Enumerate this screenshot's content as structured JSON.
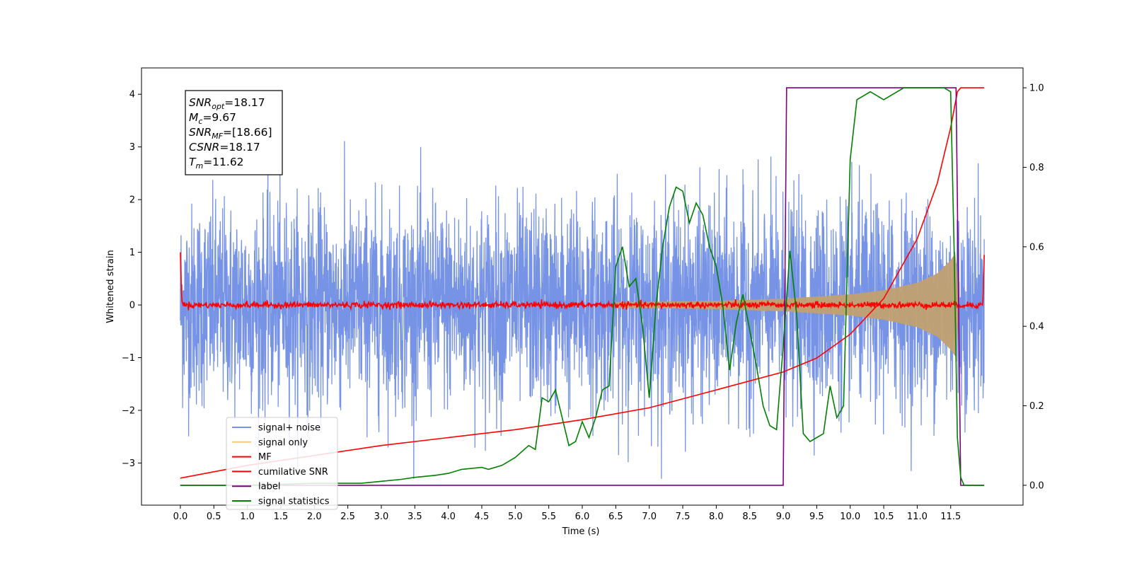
{
  "chart_data": {
    "type": "line",
    "title": "",
    "xlabel": "Time (s)",
    "ylabel": "Whitened strain",
    "xlim": [
      -0.58,
      12.58
    ],
    "ylim": [
      -3.8,
      4.5
    ],
    "y2lim": [
      -0.05,
      1.05
    ],
    "x_ticks": [
      "0.0",
      "0.5",
      "1.0",
      "1.5",
      "2.0",
      "2.5",
      "3.0",
      "3.5",
      "4.0",
      "4.5",
      "5.0",
      "5.5",
      "6.0",
      "6.5",
      "7.0",
      "7.5",
      "8.0",
      "8.5",
      "9.0",
      "9.5",
      "10.0",
      "10.5",
      "11.0",
      "11.5"
    ],
    "y_ticks": [
      "−3",
      "−2",
      "−1",
      "0",
      "1",
      "2",
      "3",
      "4"
    ],
    "y2_ticks": [
      "0.0",
      "0.2",
      "0.4",
      "0.6",
      "0.8",
      "1.0"
    ],
    "grid": false,
    "legend_position": "lower-left",
    "annotation": {
      "lines": [
        {
          "sym": "SNR",
          "sub": "opt",
          "value": "=18.17"
        },
        {
          "sym": "M",
          "sub": "c",
          "value": "=9.67"
        },
        {
          "sym": "SNR",
          "sub": "MF",
          "value": "=[18.66]"
        },
        {
          "sym": "CSNR",
          "sub": "",
          "value": "=18.17"
        },
        {
          "sym": "T",
          "sub": "m",
          "value": "=11.62"
        }
      ]
    },
    "series": [
      {
        "name": "signal+ noise",
        "axis": "left",
        "color": "#7793e6",
        "kind": "noise",
        "amplitude_range": [
          -3.3,
          3.4
        ]
      },
      {
        "name": "signal only",
        "axis": "left",
        "color": "#f5c97a",
        "kind": "chirp",
        "envelope": {
          "x": [
            0.0,
            7.0,
            8.0,
            9.0,
            10.0,
            10.5,
            11.0,
            11.3,
            11.5,
            11.58,
            11.62
          ],
          "y": [
            0.03,
            0.06,
            0.08,
            0.12,
            0.2,
            0.28,
            0.42,
            0.6,
            0.85,
            1.0,
            0.0
          ]
        }
      },
      {
        "name": "MF",
        "axis": "left",
        "color": "#ff0000",
        "kind": "mf",
        "points": {
          "x": [
            0.0,
            0.02,
            0.04,
            11.98,
            12.0
          ],
          "y": [
            1.0,
            0.1,
            0.0,
            0.0,
            0.95
          ]
        }
      },
      {
        "name": "cumilative SNR",
        "axis": "right",
        "color": "#ff0000",
        "x": [
          0.0,
          1.0,
          2.0,
          3.0,
          4.0,
          5.0,
          6.0,
          7.0,
          8.0,
          9.0,
          9.5,
          10.0,
          10.5,
          11.0,
          11.3,
          11.5,
          11.6,
          11.65,
          12.0
        ],
        "y": [
          0.018,
          0.05,
          0.075,
          0.1,
          0.12,
          0.14,
          0.165,
          0.195,
          0.24,
          0.285,
          0.32,
          0.38,
          0.47,
          0.62,
          0.76,
          0.9,
          0.99,
          1.0,
          1.0
        ]
      },
      {
        "name": "label",
        "axis": "right",
        "color": "#800080",
        "x": [
          0.0,
          9.0,
          9.05,
          11.58,
          11.65,
          12.0
        ],
        "y": [
          0.0,
          0.0,
          1.0,
          1.0,
          0.0,
          0.0
        ]
      },
      {
        "name": "signal statistics",
        "axis": "right",
        "color": "#008000",
        "x": [
          0.0,
          1.0,
          2.0,
          2.7,
          3.0,
          3.3,
          3.5,
          3.8,
          4.0,
          4.2,
          4.5,
          4.6,
          4.8,
          5.0,
          5.2,
          5.3,
          5.4,
          5.5,
          5.6,
          5.7,
          5.8,
          5.9,
          6.0,
          6.1,
          6.2,
          6.3,
          6.4,
          6.5,
          6.6,
          6.7,
          6.8,
          6.9,
          7.0,
          7.1,
          7.2,
          7.3,
          7.4,
          7.5,
          7.6,
          7.7,
          7.8,
          7.9,
          8.0,
          8.1,
          8.2,
          8.3,
          8.4,
          8.5,
          8.6,
          8.7,
          8.8,
          8.9,
          9.0,
          9.1,
          9.2,
          9.3,
          9.4,
          9.5,
          9.6,
          9.7,
          9.8,
          9.9,
          10.0,
          10.1,
          10.2,
          10.3,
          10.4,
          10.5,
          10.6,
          10.7,
          10.8,
          10.9,
          11.0,
          11.2,
          11.4,
          11.5,
          11.55,
          11.6,
          11.65,
          11.7,
          12.0
        ],
        "y": [
          0.0,
          0.0,
          0.005,
          0.005,
          0.01,
          0.015,
          0.02,
          0.025,
          0.03,
          0.04,
          0.045,
          0.04,
          0.05,
          0.07,
          0.1,
          0.09,
          0.22,
          0.21,
          0.24,
          0.17,
          0.1,
          0.11,
          0.16,
          0.12,
          0.17,
          0.24,
          0.25,
          0.55,
          0.6,
          0.5,
          0.52,
          0.4,
          0.22,
          0.45,
          0.6,
          0.7,
          0.75,
          0.74,
          0.66,
          0.71,
          0.68,
          0.6,
          0.55,
          0.45,
          0.29,
          0.41,
          0.48,
          0.39,
          0.3,
          0.2,
          0.15,
          0.14,
          0.35,
          0.59,
          0.43,
          0.13,
          0.11,
          0.12,
          0.13,
          0.25,
          0.17,
          0.2,
          0.82,
          0.97,
          0.98,
          0.99,
          0.98,
          0.97,
          0.98,
          0.99,
          1.0,
          1.0,
          1.0,
          1.0,
          1.0,
          0.99,
          0.6,
          0.12,
          0.02,
          0.0,
          0.0
        ]
      }
    ]
  }
}
